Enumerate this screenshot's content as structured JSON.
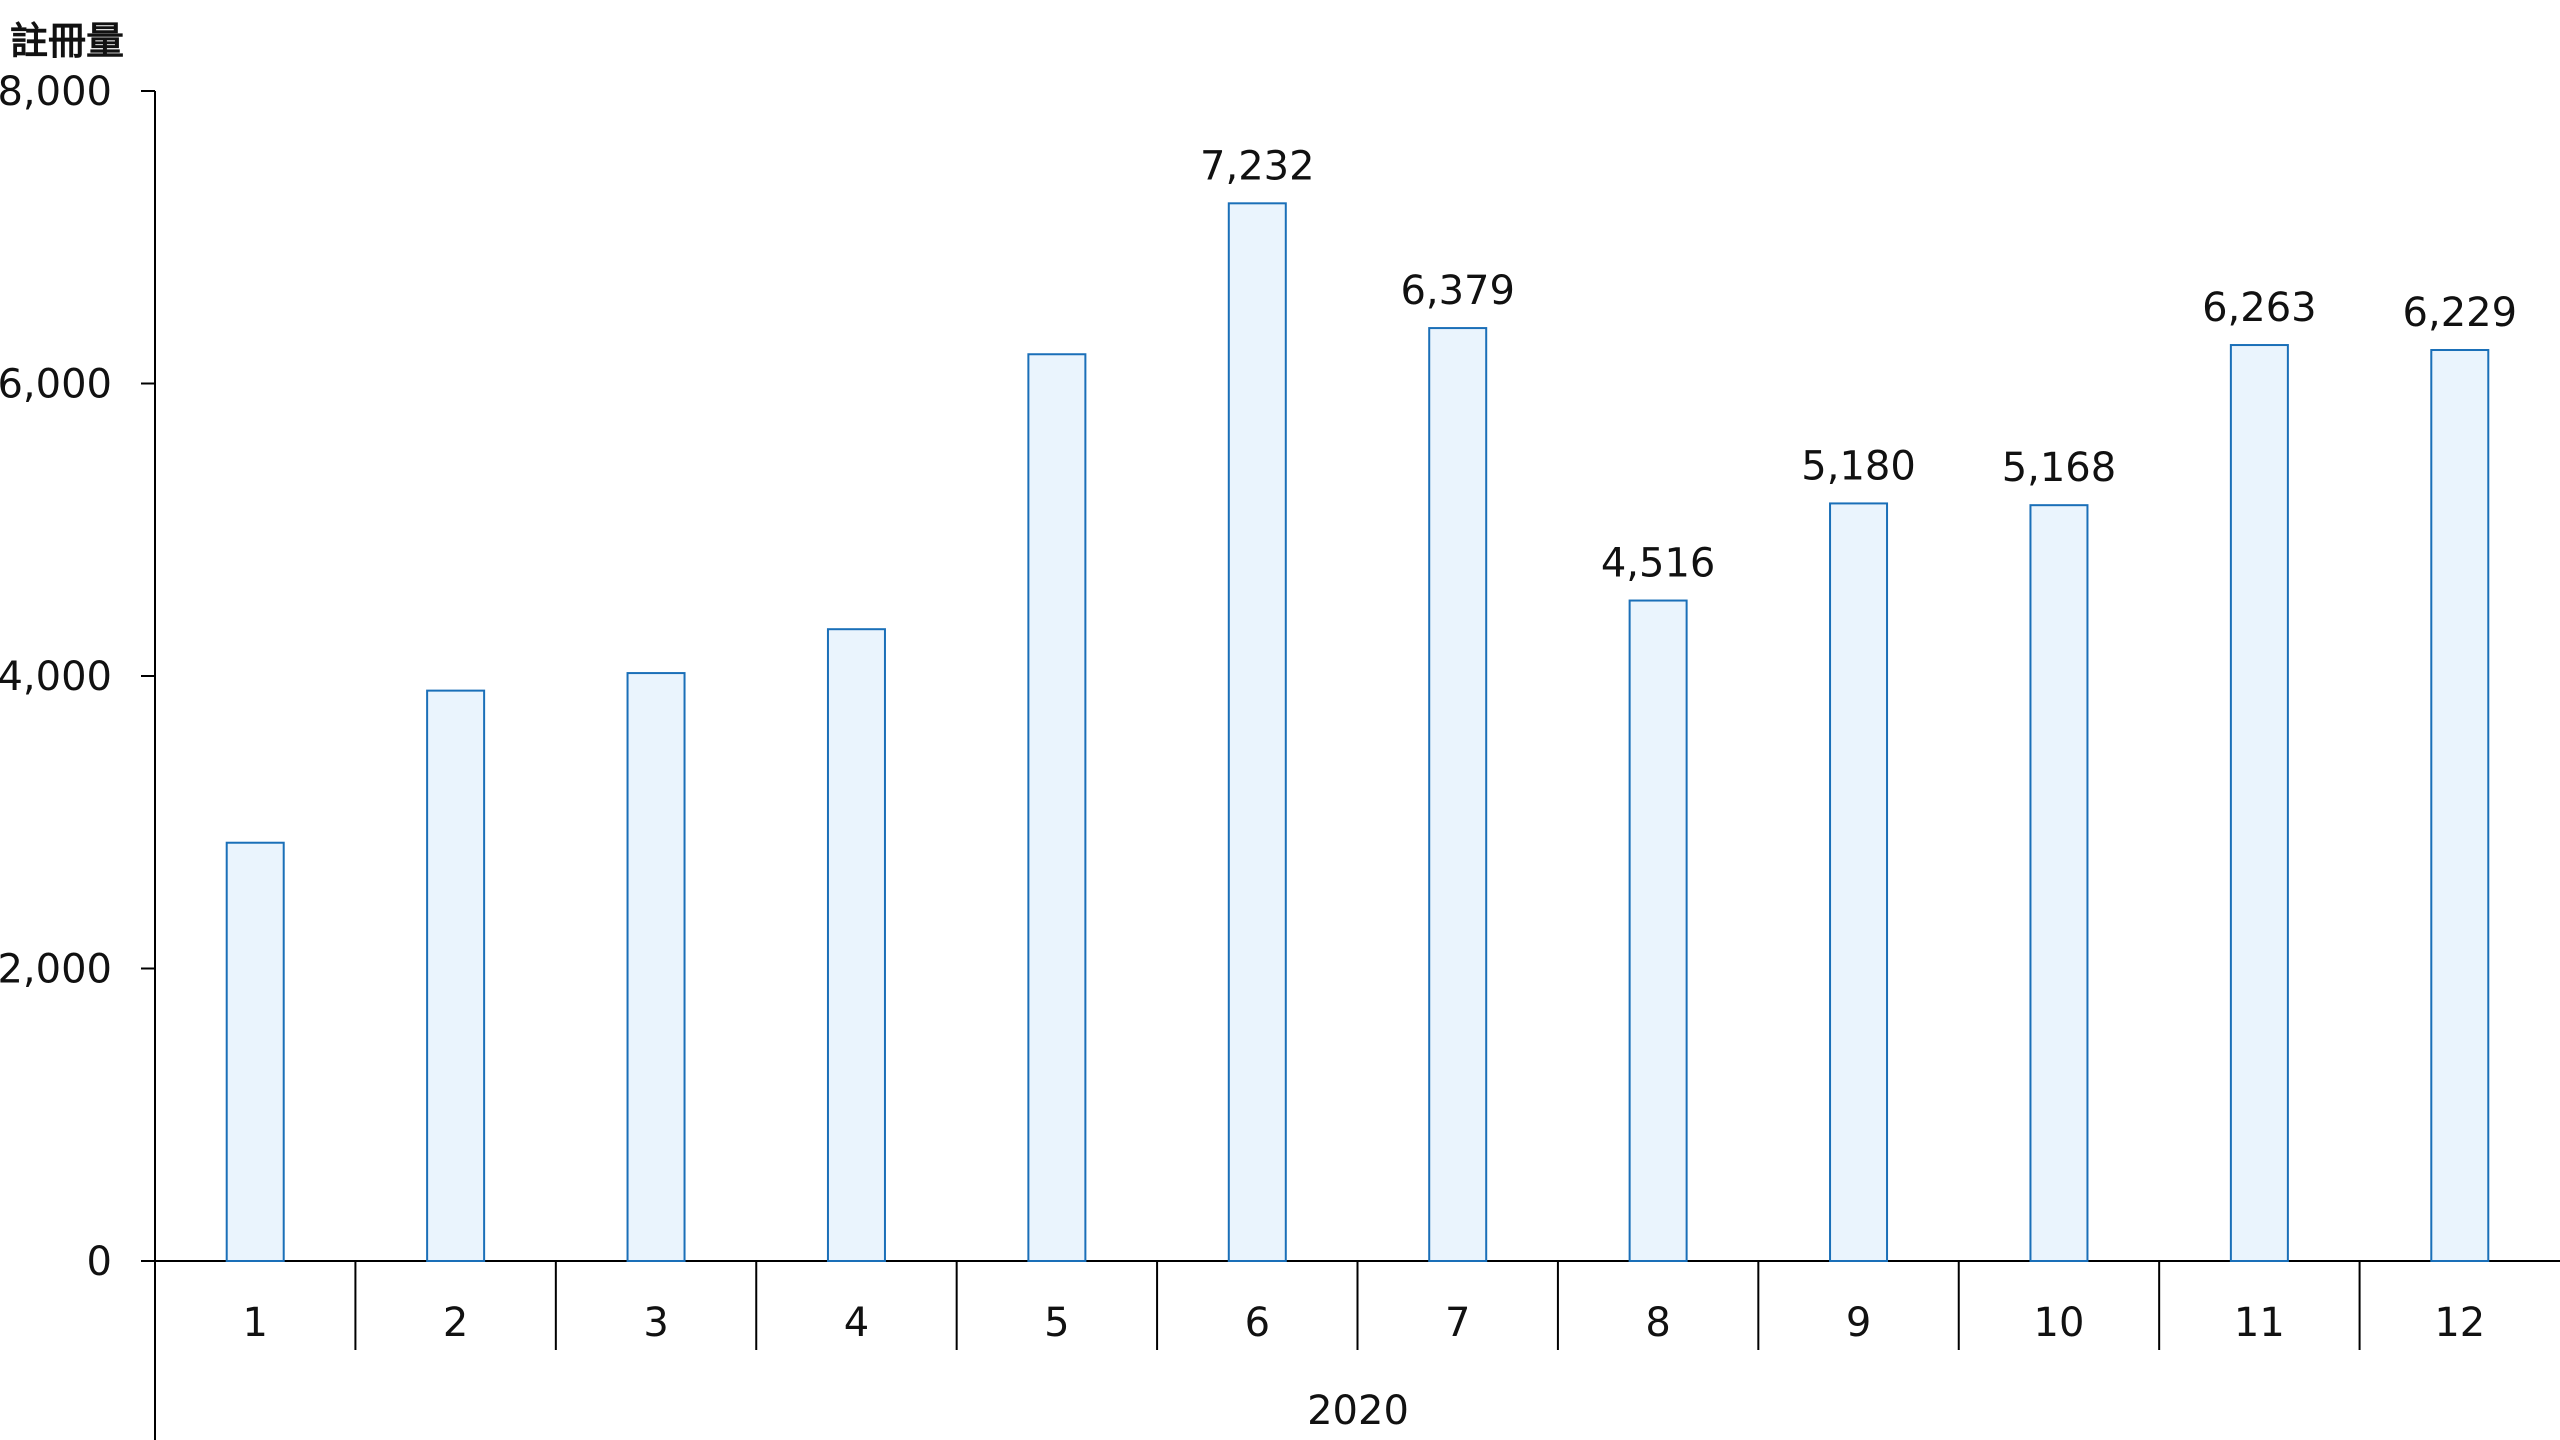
{
  "chart_data": {
    "type": "bar",
    "ylabel": "註冊量",
    "xlabel": "2020",
    "categories": [
      "1",
      "2",
      "3",
      "4",
      "5",
      "6",
      "7",
      "8",
      "9",
      "10",
      "11",
      "12"
    ],
    "values": [
      2860,
      3900,
      4020,
      4320,
      6200,
      7232,
      6379,
      4516,
      5180,
      5168,
      6263,
      6229
    ],
    "data_labels": [
      null,
      null,
      null,
      null,
      null,
      "7,232",
      "6,379",
      "4,516",
      "5,180",
      "5,168",
      "6,263",
      "6,229"
    ],
    "ylim": [
      0,
      8000
    ],
    "yticks": [
      "0",
      "2,000",
      "4,000",
      "6,000",
      "8,000"
    ],
    "ytick_values": [
      0,
      2000,
      4000,
      6000,
      8000
    ],
    "grid": false,
    "legend": "none",
    "colors": {
      "bar_fill": "#eaf4fd",
      "bar_stroke": "#1a6fb8",
      "axis": "#000000"
    }
  }
}
